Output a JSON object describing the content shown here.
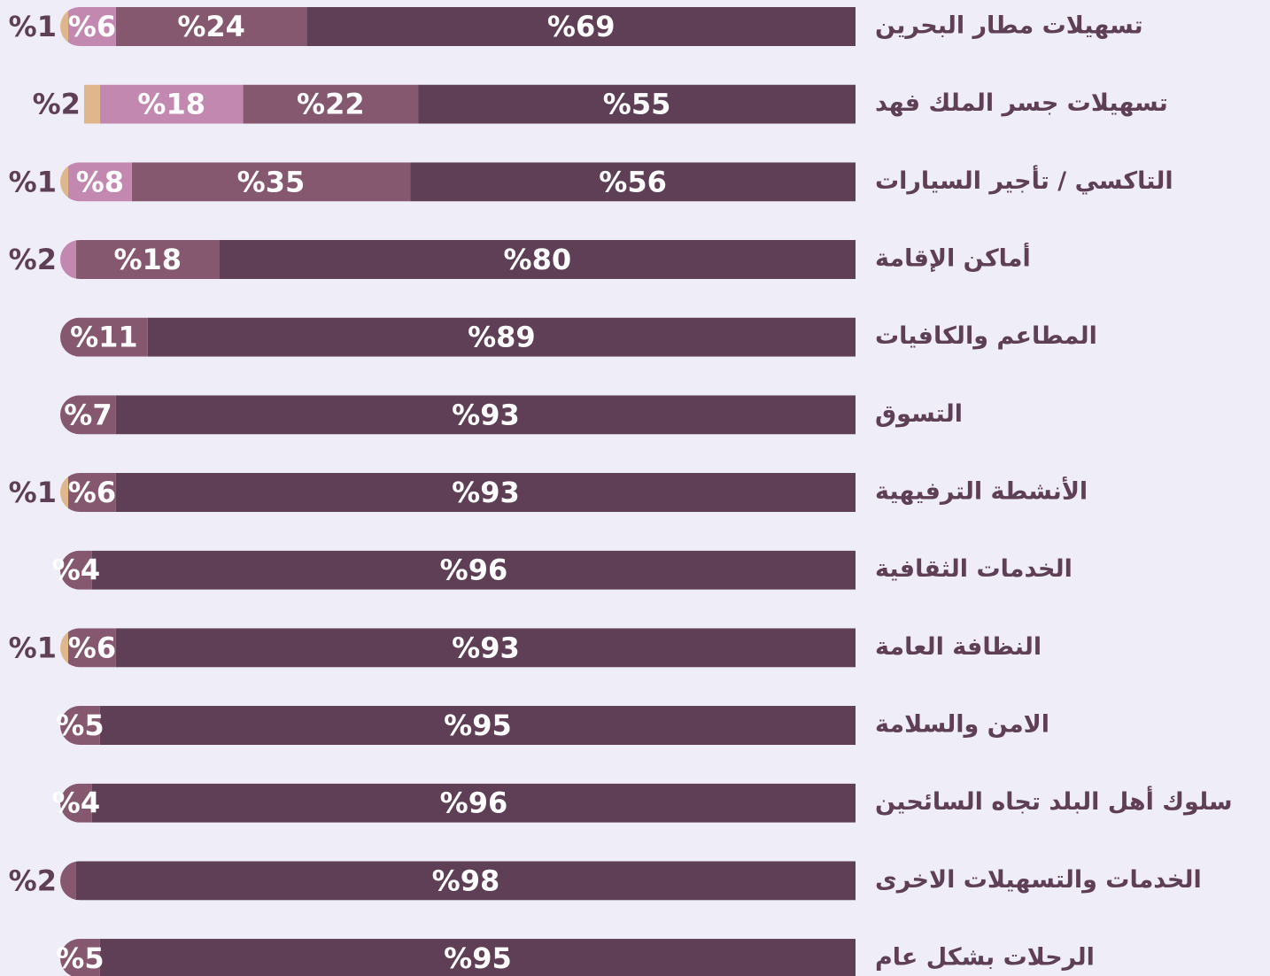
{
  "chart_data": {
    "type": "stacked-bar",
    "orientation": "horizontal",
    "categories": [
      "تسهيلات مطار البحرين",
      "تسهيلات جسر الملك فهد",
      "التاكسي / تأجير السيارات",
      "أماكن الإقامة",
      "المطاعم والكافيات",
      "التسوق",
      "الأنشطة الترفيهية",
      "الخدمات الثقافية",
      "النظافة العامة",
      "الامن والسلامة",
      "سلوك أهل البلد تجاه السائحين",
      "الخدمات والتسهيلات الاخرى",
      "الرحلات بشكل عام"
    ],
    "xlim": [
      0,
      100
    ],
    "series": [
      {
        "color": "#5e3f55",
        "values": [
          69,
          55,
          56,
          80,
          89,
          93,
          93,
          96,
          93,
          95,
          96,
          98,
          95
        ],
        "value_labels": [
          "%69",
          "%55",
          "%56",
          "%80",
          "%89",
          "%93",
          "%93",
          "%96",
          "%93",
          "%95",
          "%96",
          "%98",
          "%95"
        ]
      },
      {
        "color": "#86586f",
        "values": [
          24,
          22,
          35,
          18,
          11,
          7,
          6,
          4,
          6,
          5,
          4,
          2,
          5
        ],
        "value_labels": [
          "%24",
          "%22",
          "%35",
          "%18",
          "%11",
          "%7",
          "%6",
          "%4",
          "%6",
          "%5",
          "%4",
          "%2",
          "%5"
        ]
      },
      {
        "color": "#c288b0",
        "values": [
          6,
          18,
          8,
          2,
          null,
          null,
          null,
          null,
          null,
          null,
          null,
          null,
          null
        ],
        "value_labels": [
          "%6",
          "%18",
          "%8",
          "%2",
          null,
          null,
          null,
          null,
          null,
          null,
          null,
          null,
          null
        ]
      },
      {
        "color": "#e0b78c",
        "values": [
          1,
          2,
          1,
          null,
          null,
          null,
          1,
          null,
          1,
          null,
          null,
          null,
          null
        ],
        "value_labels": [
          "%1",
          "%2",
          "%1",
          null,
          null,
          null,
          "%1",
          null,
          "%1",
          null,
          null,
          null,
          null
        ]
      }
    ]
  }
}
